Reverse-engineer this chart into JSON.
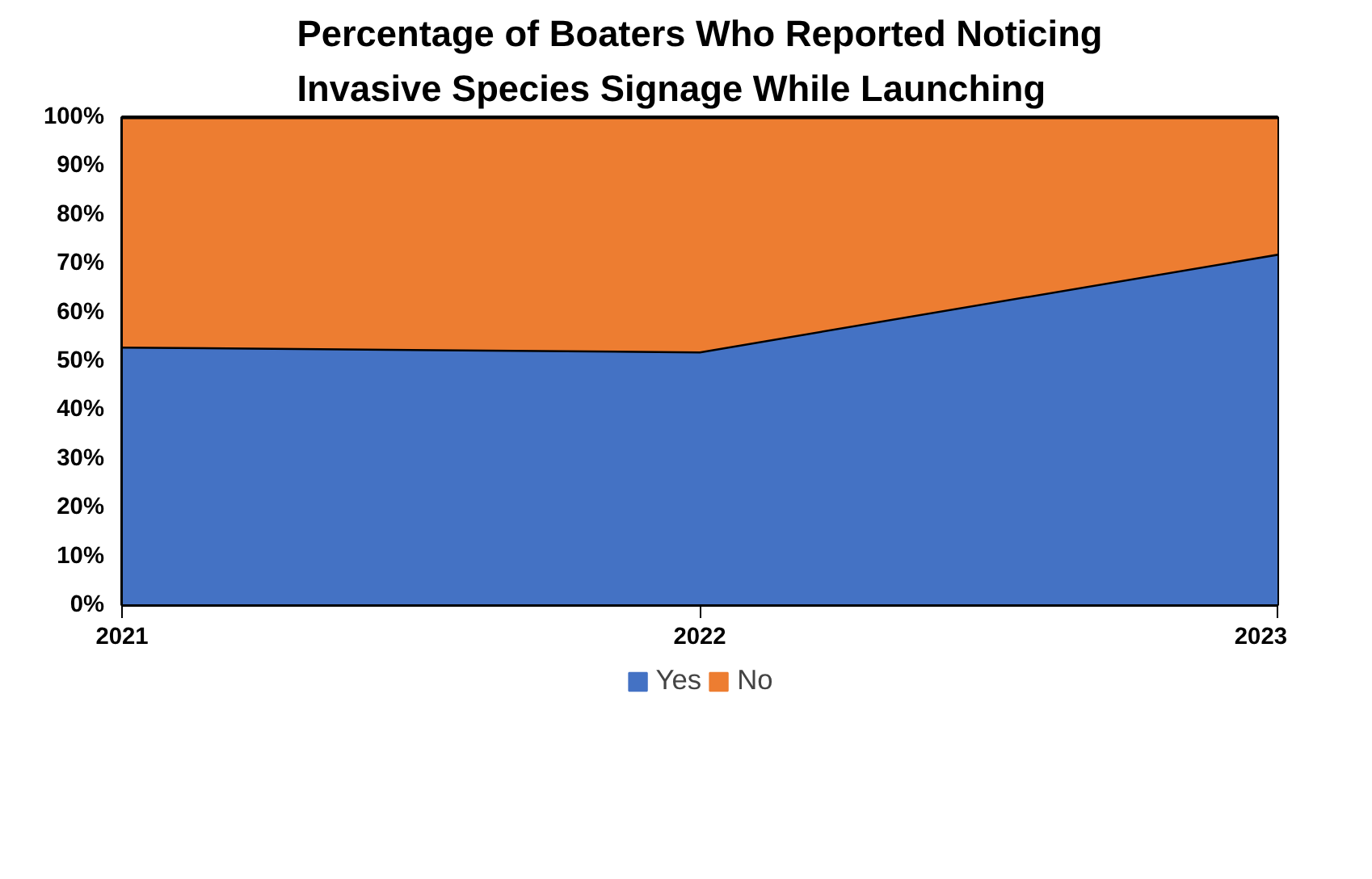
{
  "chart_data": {
    "type": "area",
    "stacked": true,
    "title": "Percentage of Boaters Who Reported Noticing\nInvasive Species Signage While Launching",
    "categories": [
      "2021",
      "2022",
      "2023"
    ],
    "series": [
      {
        "name": "Yes",
        "color": "#4472c4",
        "values": [
          53,
          52,
          72
        ]
      },
      {
        "name": "No",
        "color": "#ed7d31",
        "values": [
          47,
          48,
          28
        ]
      }
    ],
    "ylim": [
      0,
      100
    ],
    "yticks": [
      {
        "value": 0,
        "label": "0%"
      },
      {
        "value": 10,
        "label": "10%"
      },
      {
        "value": 20,
        "label": "20%"
      },
      {
        "value": 30,
        "label": "30%"
      },
      {
        "value": 40,
        "label": "40%"
      },
      {
        "value": 50,
        "label": "50%"
      },
      {
        "value": 60,
        "label": "60%"
      },
      {
        "value": 70,
        "label": "70%"
      },
      {
        "value": 80,
        "label": "80%"
      },
      {
        "value": 90,
        "label": "90%"
      },
      {
        "value": 100,
        "label": "100%"
      }
    ],
    "legend": "bottom"
  }
}
